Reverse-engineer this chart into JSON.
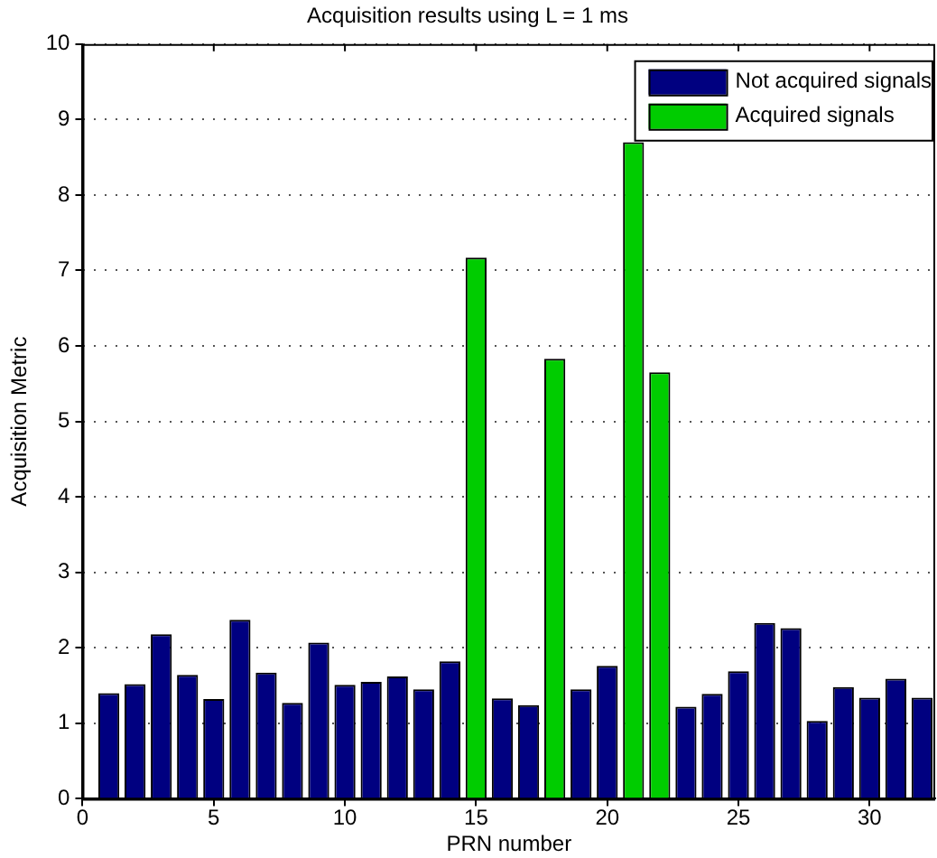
{
  "chart_data": {
    "type": "bar",
    "title": "Acquisition results using L = 1 ms",
    "xlabel": "PRN number",
    "ylabel": "Acquisition Metric",
    "x": [
      1,
      2,
      3,
      4,
      5,
      6,
      7,
      8,
      9,
      10,
      11,
      12,
      13,
      14,
      15,
      16,
      17,
      18,
      19,
      20,
      21,
      22,
      23,
      24,
      25,
      26,
      27,
      28,
      29,
      30,
      31,
      32
    ],
    "series": [
      {
        "name": "Not acquired signals",
        "color": "#000080",
        "values": [
          1.4,
          1.52,
          2.18,
          1.64,
          1.32,
          2.37,
          1.67,
          1.27,
          2.07,
          1.51,
          1.55,
          1.62,
          1.45,
          1.82,
          null,
          1.33,
          1.24,
          null,
          1.45,
          1.76,
          null,
          null,
          1.22,
          1.39,
          1.69,
          2.33,
          2.26,
          1.03,
          1.48,
          1.34,
          1.59,
          1.34
        ]
      },
      {
        "name": "Acquired signals",
        "color": "#00cc00",
        "values": [
          null,
          null,
          null,
          null,
          null,
          null,
          null,
          null,
          null,
          null,
          null,
          null,
          null,
          null,
          7.17,
          null,
          null,
          5.83,
          null,
          null,
          8.7,
          5.65,
          null,
          null,
          null,
          null,
          null,
          null,
          null,
          null,
          null,
          null
        ]
      }
    ],
    "xlim": [
      0,
      32.5
    ],
    "xticks": [
      0,
      5,
      10,
      15,
      20,
      25,
      30
    ],
    "ylim": [
      0,
      10
    ],
    "yticks": [
      0,
      1,
      2,
      3,
      4,
      5,
      6,
      7,
      8,
      9,
      10
    ],
    "grid": "y",
    "legend": "top right"
  }
}
